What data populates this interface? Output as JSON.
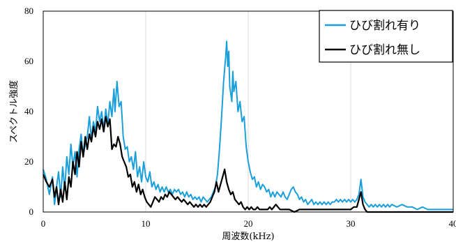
{
  "chart_data": {
    "type": "line",
    "xlabel": "周波数(kHz)",
    "ylabel": "スペクトル強度",
    "xlim": [
      0,
      40
    ],
    "ylim": [
      0,
      80
    ],
    "xticks": [
      "0",
      "10",
      "20",
      "30",
      "40"
    ],
    "yticks": [
      "0",
      "20",
      "40",
      "60",
      "80"
    ],
    "grid": "vertical",
    "legend_position": "top-right",
    "series": [
      {
        "name": "ひび割れ有り",
        "color": "#1a9fdb",
        "points": [
          [
            0,
            17
          ],
          [
            0.3,
            13
          ],
          [
            0.6,
            7
          ],
          [
            0.9,
            14
          ],
          [
            1.1,
            3
          ],
          [
            1.3,
            10
          ],
          [
            1.5,
            16
          ],
          [
            1.7,
            6
          ],
          [
            1.9,
            18
          ],
          [
            2.1,
            9
          ],
          [
            2.3,
            22
          ],
          [
            2.5,
            15
          ],
          [
            2.7,
            27
          ],
          [
            2.9,
            18
          ],
          [
            3.1,
            24
          ],
          [
            3.3,
            14
          ],
          [
            3.5,
            25
          ],
          [
            3.7,
            31
          ],
          [
            3.9,
            22
          ],
          [
            4.1,
            27
          ],
          [
            4.3,
            30
          ],
          [
            4.5,
            38
          ],
          [
            4.7,
            29
          ],
          [
            4.9,
            36
          ],
          [
            5.1,
            32
          ],
          [
            5.3,
            42
          ],
          [
            5.5,
            36
          ],
          [
            5.7,
            40
          ],
          [
            5.9,
            33
          ],
          [
            6.1,
            41
          ],
          [
            6.3,
            35
          ],
          [
            6.5,
            44
          ],
          [
            6.7,
            38
          ],
          [
            6.9,
            49
          ],
          [
            7.0,
            40
          ],
          [
            7.2,
            52
          ],
          [
            7.4,
            42
          ],
          [
            7.6,
            44
          ],
          [
            7.8,
            30
          ],
          [
            8.0,
            25
          ],
          [
            8.2,
            26
          ],
          [
            8.4,
            20
          ],
          [
            8.6,
            22
          ],
          [
            8.8,
            17
          ],
          [
            9.0,
            24
          ],
          [
            9.2,
            14
          ],
          [
            9.4,
            18
          ],
          [
            9.6,
            12
          ],
          [
            9.8,
            20
          ],
          [
            10.0,
            14
          ],
          [
            10.2,
            12
          ],
          [
            10.4,
            16
          ],
          [
            10.6,
            10
          ],
          [
            10.8,
            12
          ],
          [
            11.0,
            9
          ],
          [
            11.2,
            11
          ],
          [
            11.4,
            8
          ],
          [
            11.6,
            10
          ],
          [
            11.8,
            8
          ],
          [
            12.0,
            10
          ],
          [
            12.2,
            8
          ],
          [
            12.4,
            9
          ],
          [
            12.6,
            7
          ],
          [
            12.8,
            9
          ],
          [
            13.0,
            8
          ],
          [
            13.2,
            9
          ],
          [
            13.4,
            7
          ],
          [
            13.6,
            8
          ],
          [
            13.8,
            6
          ],
          [
            14.0,
            8
          ],
          [
            14.2,
            6
          ],
          [
            14.4,
            7
          ],
          [
            14.6,
            5
          ],
          [
            14.8,
            6
          ],
          [
            15.0,
            5
          ],
          [
            15.2,
            6
          ],
          [
            15.4,
            4
          ],
          [
            15.6,
            6
          ],
          [
            15.8,
            5
          ],
          [
            16.0,
            4
          ],
          [
            16.2,
            5
          ],
          [
            16.4,
            6
          ],
          [
            16.6,
            8
          ],
          [
            16.8,
            10
          ],
          [
            17.0,
            15
          ],
          [
            17.2,
            25
          ],
          [
            17.4,
            38
          ],
          [
            17.6,
            52
          ],
          [
            17.8,
            62
          ],
          [
            17.9,
            68
          ],
          [
            18.0,
            58
          ],
          [
            18.1,
            64
          ],
          [
            18.2,
            50
          ],
          [
            18.4,
            44
          ],
          [
            18.5,
            56
          ],
          [
            18.6,
            48
          ],
          [
            18.8,
            52
          ],
          [
            19.0,
            40
          ],
          [
            19.2,
            44
          ],
          [
            19.4,
            36
          ],
          [
            19.6,
            38
          ],
          [
            19.8,
            26
          ],
          [
            20.0,
            20
          ],
          [
            20.2,
            16
          ],
          [
            20.4,
            13
          ],
          [
            20.6,
            14
          ],
          [
            20.8,
            10
          ],
          [
            21.0,
            12
          ],
          [
            21.2,
            9
          ],
          [
            21.4,
            11
          ],
          [
            21.6,
            10
          ],
          [
            21.8,
            8
          ],
          [
            22.0,
            9
          ],
          [
            22.2,
            6
          ],
          [
            22.4,
            8
          ],
          [
            22.6,
            6
          ],
          [
            22.8,
            8
          ],
          [
            23.0,
            7
          ],
          [
            23.2,
            6
          ],
          [
            23.4,
            8
          ],
          [
            23.6,
            6
          ],
          [
            23.8,
            5
          ],
          [
            24.0,
            7
          ],
          [
            24.2,
            9
          ],
          [
            24.4,
            10
          ],
          [
            24.6,
            8
          ],
          [
            24.8,
            7
          ],
          [
            25.0,
            5
          ],
          [
            25.2,
            6
          ],
          [
            25.4,
            4
          ],
          [
            25.6,
            5
          ],
          [
            25.8,
            3
          ],
          [
            26.0,
            4
          ],
          [
            26.2,
            5
          ],
          [
            26.4,
            3
          ],
          [
            26.6,
            4
          ],
          [
            26.8,
            3
          ],
          [
            27.0,
            4
          ],
          [
            27.2,
            3
          ],
          [
            27.4,
            4
          ],
          [
            27.6,
            3
          ],
          [
            27.8,
            4
          ],
          [
            28.0,
            3
          ],
          [
            28.2,
            4
          ],
          [
            28.4,
            4
          ],
          [
            28.6,
            5
          ],
          [
            28.8,
            4
          ],
          [
            29.0,
            5
          ],
          [
            29.2,
            4
          ],
          [
            29.4,
            5
          ],
          [
            29.6,
            4
          ],
          [
            29.8,
            5
          ],
          [
            30.0,
            4
          ],
          [
            30.2,
            5
          ],
          [
            30.4,
            4
          ],
          [
            30.6,
            5
          ],
          [
            30.8,
            7
          ],
          [
            31.0,
            13
          ],
          [
            31.2,
            6
          ],
          [
            31.4,
            4
          ],
          [
            31.6,
            3
          ],
          [
            31.8,
            2
          ],
          [
            32.0,
            3
          ],
          [
            32.2,
            2
          ],
          [
            32.4,
            3
          ],
          [
            32.6,
            2
          ],
          [
            32.8,
            3
          ],
          [
            33.0,
            2
          ],
          [
            33.2,
            3
          ],
          [
            33.4,
            2
          ],
          [
            33.6,
            3
          ],
          [
            33.8,
            2
          ],
          [
            34.0,
            3
          ],
          [
            34.5,
            2
          ],
          [
            35.0,
            3
          ],
          [
            35.5,
            2
          ],
          [
            36.0,
            2
          ],
          [
            36.5,
            1
          ],
          [
            37.0,
            2
          ],
          [
            37.5,
            1
          ],
          [
            38.0,
            1
          ],
          [
            38.5,
            1
          ],
          [
            39.0,
            1
          ],
          [
            39.5,
            1
          ],
          [
            40.0,
            1
          ]
        ]
      },
      {
        "name": "ひび割れ無し",
        "color": "#000000",
        "points": [
          [
            0,
            15
          ],
          [
            0.3,
            12
          ],
          [
            0.6,
            10
          ],
          [
            0.9,
            13
          ],
          [
            1.1,
            6
          ],
          [
            1.3,
            10
          ],
          [
            1.5,
            3
          ],
          [
            1.7,
            9
          ],
          [
            1.9,
            4
          ],
          [
            2.1,
            12
          ],
          [
            2.3,
            5
          ],
          [
            2.5,
            14
          ],
          [
            2.7,
            10
          ],
          [
            2.9,
            20
          ],
          [
            3.1,
            15
          ],
          [
            3.3,
            24
          ],
          [
            3.5,
            18
          ],
          [
            3.7,
            28
          ],
          [
            3.9,
            22
          ],
          [
            4.1,
            30
          ],
          [
            4.3,
            25
          ],
          [
            4.5,
            31
          ],
          [
            4.7,
            28
          ],
          [
            4.9,
            34
          ],
          [
            5.1,
            30
          ],
          [
            5.3,
            36
          ],
          [
            5.5,
            33
          ],
          [
            5.7,
            37
          ],
          [
            5.9,
            32
          ],
          [
            6.1,
            38
          ],
          [
            6.3,
            34
          ],
          [
            6.5,
            37
          ],
          [
            6.7,
            25
          ],
          [
            6.9,
            27
          ],
          [
            7.1,
            26
          ],
          [
            7.3,
            30
          ],
          [
            7.5,
            27
          ],
          [
            7.7,
            22
          ],
          [
            7.9,
            20
          ],
          [
            8.1,
            18
          ],
          [
            8.3,
            14
          ],
          [
            8.5,
            15
          ],
          [
            8.7,
            10
          ],
          [
            8.9,
            12
          ],
          [
            9.1,
            8
          ],
          [
            9.3,
            11
          ],
          [
            9.5,
            7
          ],
          [
            9.7,
            9
          ],
          [
            9.9,
            6
          ],
          [
            10.1,
            4
          ],
          [
            10.3,
            3
          ],
          [
            10.5,
            2
          ],
          [
            10.7,
            4
          ],
          [
            10.9,
            6
          ],
          [
            11.1,
            5
          ],
          [
            11.3,
            4
          ],
          [
            11.5,
            6
          ],
          [
            11.7,
            5
          ],
          [
            11.9,
            7
          ],
          [
            12.1,
            6
          ],
          [
            12.3,
            8
          ],
          [
            12.5,
            7
          ],
          [
            12.7,
            6
          ],
          [
            12.9,
            5
          ],
          [
            13.1,
            6
          ],
          [
            13.3,
            5
          ],
          [
            13.5,
            4
          ],
          [
            13.7,
            5
          ],
          [
            13.9,
            4
          ],
          [
            14.1,
            3
          ],
          [
            14.3,
            4
          ],
          [
            14.5,
            3
          ],
          [
            14.7,
            2
          ],
          [
            14.9,
            3
          ],
          [
            15.1,
            2
          ],
          [
            15.3,
            3
          ],
          [
            15.5,
            2
          ],
          [
            15.7,
            3
          ],
          [
            15.9,
            2
          ],
          [
            16.1,
            3
          ],
          [
            16.3,
            4
          ],
          [
            16.5,
            6
          ],
          [
            16.7,
            8
          ],
          [
            16.9,
            12
          ],
          [
            17.1,
            8
          ],
          [
            17.3,
            11
          ],
          [
            17.5,
            14
          ],
          [
            17.7,
            17
          ],
          [
            17.9,
            12
          ],
          [
            18.1,
            9
          ],
          [
            18.3,
            7
          ],
          [
            18.5,
            8
          ],
          [
            18.7,
            5
          ],
          [
            18.9,
            4
          ],
          [
            19.1,
            3
          ],
          [
            19.3,
            4
          ],
          [
            19.5,
            2
          ],
          [
            19.7,
            1
          ],
          [
            19.9,
            2
          ],
          [
            20.1,
            1
          ],
          [
            20.3,
            2
          ],
          [
            20.5,
            1
          ],
          [
            20.7,
            1
          ],
          [
            20.9,
            2
          ],
          [
            21.1,
            1
          ],
          [
            21.3,
            1
          ],
          [
            21.5,
            1
          ],
          [
            21.7,
            1
          ],
          [
            21.9,
            1
          ],
          [
            22.1,
            2
          ],
          [
            22.3,
            1
          ],
          [
            22.5,
            2
          ],
          [
            22.7,
            3
          ],
          [
            22.9,
            2
          ],
          [
            23.1,
            1
          ],
          [
            23.3,
            1
          ],
          [
            23.5,
            1
          ],
          [
            24.0,
            1
          ],
          [
            24.5,
            0
          ],
          [
            25.0,
            1
          ],
          [
            25.5,
            1
          ],
          [
            26.0,
            1
          ],
          [
            26.5,
            1
          ],
          [
            27.0,
            1
          ],
          [
            27.5,
            1
          ],
          [
            28.0,
            1
          ],
          [
            28.5,
            1
          ],
          [
            29.0,
            1
          ],
          [
            29.5,
            1
          ],
          [
            30.0,
            1
          ],
          [
            30.3,
            2
          ],
          [
            30.6,
            2
          ],
          [
            30.8,
            5
          ],
          [
            31.0,
            8
          ],
          [
            31.2,
            3
          ],
          [
            31.4,
            1
          ],
          [
            31.6,
            0
          ],
          [
            32.0,
            0
          ],
          [
            33.0,
            0
          ],
          [
            34.0,
            0
          ],
          [
            35.0,
            0
          ],
          [
            36.0,
            0
          ],
          [
            37.0,
            0
          ],
          [
            38.0,
            0
          ],
          [
            39.0,
            0
          ],
          [
            40.0,
            0
          ]
        ]
      }
    ]
  }
}
